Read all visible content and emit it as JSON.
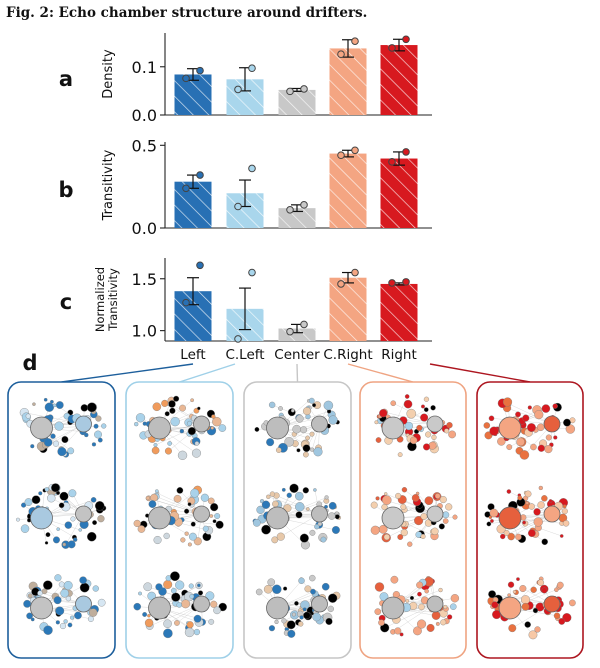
{
  "figure": {
    "title": "Fig. 2: Echo chamber structure around drifters.",
    "panel_d_label": "d"
  },
  "colors": {
    "Left": "#2870b4",
    "C.Left": "#a9d6ec",
    "Center": "#c8c8c8",
    "C.Right": "#f4a582",
    "Right": "#d7191f",
    "Left_border": "#1d5f9c",
    "C.Left_border": "#9fd0e8",
    "Center_border": "#c6c6c6",
    "C.Right_border": "#efa482",
    "Right_border": "#ad1620"
  },
  "chart_data": [
    {
      "panel": "a",
      "type": "bar",
      "categories": [
        "Left",
        "C.Left",
        "Center",
        "C.Right",
        "Right"
      ],
      "ylabel": "Density",
      "ylim": [
        0,
        0.17
      ],
      "yticks": [
        0.0,
        0.1
      ],
      "ytick_labels": [
        "0.0",
        "0.1"
      ],
      "values": [
        0.084,
        0.074,
        0.052,
        0.138,
        0.145
      ],
      "err": [
        0.012,
        0.024,
        0.003,
        0.018,
        0.012
      ],
      "points": [
        [
          0.076,
          0.092
        ],
        [
          0.053,
          0.097
        ],
        [
          0.049,
          0.054
        ],
        [
          0.126,
          0.153
        ],
        [
          0.139,
          0.157
        ]
      ]
    },
    {
      "panel": "b",
      "type": "bar",
      "categories": [
        "Left",
        "C.Left",
        "Center",
        "C.Right",
        "Right"
      ],
      "ylabel": "Transitivity",
      "ylim": [
        0,
        0.52
      ],
      "yticks": [
        0.0,
        0.5
      ],
      "ytick_labels": [
        "0.0",
        "0.5"
      ],
      "values": [
        0.28,
        0.21,
        0.12,
        0.45,
        0.42
      ],
      "err": [
        0.04,
        0.08,
        0.02,
        0.02,
        0.04
      ],
      "points": [
        [
          0.24,
          0.32
        ],
        [
          0.13,
          0.36
        ],
        [
          0.11,
          0.14
        ],
        [
          0.44,
          0.47
        ],
        [
          0.4,
          0.46
        ]
      ]
    },
    {
      "panel": "c",
      "type": "bar",
      "categories": [
        "Left",
        "C.Left",
        "Center",
        "C.Right",
        "Right"
      ],
      "ylabel_lines": [
        "Normalized",
        "Transitivity"
      ],
      "ylim": [
        0.9,
        1.7
      ],
      "yticks": [
        1.0,
        1.5
      ],
      "ytick_labels": [
        "1.0",
        "1.5"
      ],
      "values": [
        1.38,
        1.21,
        1.02,
        1.51,
        1.45
      ],
      "err": [
        0.13,
        0.2,
        0.04,
        0.05,
        0.01
      ],
      "points": [
        [
          1.27,
          1.63
        ],
        [
          0.92,
          1.56
        ],
        [
          0.99,
          1.06
        ],
        [
          1.45,
          1.56
        ],
        [
          1.46,
          1.47
        ]
      ],
      "xlabels": [
        "Left",
        "C.Left",
        "Center",
        "C.Right",
        "Right"
      ]
    }
  ]
}
